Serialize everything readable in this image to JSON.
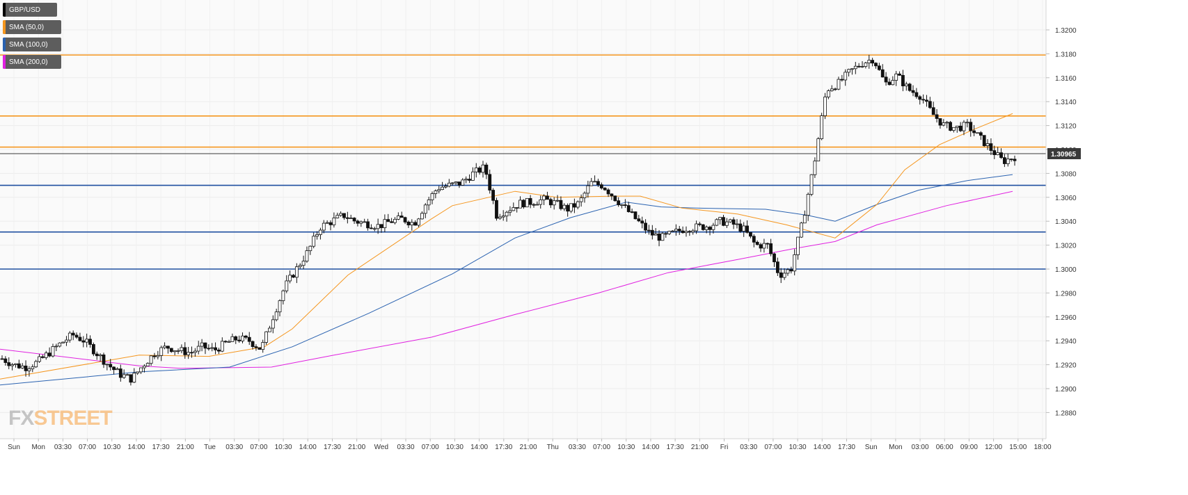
{
  "legend": [
    {
      "label": "GBP/USD",
      "color": "#000000"
    },
    {
      "label": "SMA (50,0)",
      "color": "#f5961e"
    },
    {
      "label": "SMA (100,0)",
      "color": "#2a62b0"
    },
    {
      "label": "SMA (200,0)",
      "color": "#e020e0"
    }
  ],
  "logo": {
    "fx": "FX",
    "street": "STREET"
  },
  "price_badge": "1.30965",
  "chart_data": {
    "type": "candlestick",
    "symbol": "GBP/USD",
    "ylim": [
      1.2865,
      1.3215
    ],
    "y_ticks": [
      "1.2880",
      "1.2900",
      "1.2920",
      "1.2940",
      "1.2960",
      "1.2980",
      "1.3000",
      "1.3020",
      "1.3040",
      "1.3060",
      "1.3080",
      "1.3100",
      "1.3120",
      "1.3140",
      "1.3160",
      "1.3180",
      "1.3200"
    ],
    "x_ticks": [
      "Sun",
      "Mon",
      "03:30",
      "07:00",
      "10:30",
      "14:00",
      "17:30",
      "21:00",
      "Tue",
      "03:30",
      "07:00",
      "10:30",
      "14:00",
      "17:30",
      "21:00",
      "Wed",
      "03:30",
      "07:00",
      "10:30",
      "14:00",
      "17:30",
      "21:00",
      "Thu",
      "03:30",
      "07:00",
      "10:30",
      "14:00",
      "17:30",
      "21:00",
      "Fri",
      "03:30",
      "07:00",
      "10:30",
      "14:00",
      "17:30",
      "Sun",
      "Mon",
      "03:00",
      "06:00",
      "09:00",
      "12:00",
      "15:00",
      "18:00"
    ],
    "horizontal_lines": [
      {
        "value": 1.3179,
        "color": "#f5961e"
      },
      {
        "value": 1.3128,
        "color": "#f5961e"
      },
      {
        "value": 1.3102,
        "color": "#f5961e"
      },
      {
        "value": 1.30965,
        "color": "#3a3a3a"
      },
      {
        "value": 1.307,
        "color": "#1f4fa0"
      },
      {
        "value": 1.3031,
        "color": "#1f4fa0"
      },
      {
        "value": 1.3,
        "color": "#1f4fa0"
      }
    ],
    "price_path": [
      1.2925,
      1.292,
      1.2918,
      1.2922,
      1.293,
      1.2938,
      1.2945,
      1.294,
      1.293,
      1.292,
      1.2912,
      1.2908,
      1.292,
      1.293,
      1.2935,
      1.2932,
      1.293,
      1.2935,
      1.2932,
      1.2938,
      1.2942,
      1.294,
      1.2933,
      1.296,
      1.2985,
      1.3,
      1.3015,
      1.3035,
      1.304,
      1.3045,
      1.304,
      1.3038,
      1.3036,
      1.304,
      1.3042,
      1.3038,
      1.3055,
      1.3068,
      1.307,
      1.3072,
      1.308,
      1.3085,
      1.3045,
      1.305,
      1.3055,
      1.3056,
      1.3058,
      1.3055,
      1.305,
      1.3055,
      1.3072,
      1.307,
      1.306,
      1.305,
      1.304,
      1.303,
      1.3026,
      1.303,
      1.3034,
      1.3035,
      1.3036,
      1.304,
      1.3038,
      1.3033,
      1.302,
      1.302,
      1.2995,
      1.3,
      1.304,
      1.309,
      1.315,
      1.3155,
      1.3165,
      1.3172,
      1.3176,
      1.3155,
      1.3162,
      1.315,
      1.3145,
      1.313,
      1.312,
      1.3118,
      1.312,
      1.311,
      1.31,
      1.309,
      1.3094
    ],
    "sma50": [
      [
        0,
        1.2908
      ],
      [
        200,
        1.2928
      ],
      [
        300,
        1.2927
      ],
      [
        380,
        1.2935
      ],
      [
        420,
        1.295
      ],
      [
        500,
        1.2995
      ],
      [
        620,
        1.3042
      ],
      [
        650,
        1.3053
      ],
      [
        740,
        1.3065
      ],
      [
        800,
        1.306
      ],
      [
        880,
        1.3061
      ],
      [
        920,
        1.3061
      ],
      [
        980,
        1.3051
      ],
      [
        1060,
        1.3046
      ],
      [
        1130,
        1.3037
      ],
      [
        1200,
        1.3026
      ],
      [
        1260,
        1.3054
      ],
      [
        1300,
        1.3083
      ],
      [
        1350,
        1.3104
      ],
      [
        1400,
        1.3117
      ],
      [
        1455,
        1.313
      ]
    ],
    "sma100": [
      [
        0,
        1.2903
      ],
      [
        200,
        1.2914
      ],
      [
        330,
        1.2918
      ],
      [
        420,
        1.2935
      ],
      [
        530,
        1.2963
      ],
      [
        650,
        1.2996
      ],
      [
        740,
        1.3026
      ],
      [
        820,
        1.3043
      ],
      [
        900,
        1.3056
      ],
      [
        950,
        1.3052
      ],
      [
        1000,
        1.3051
      ],
      [
        1100,
        1.305
      ],
      [
        1160,
        1.3045
      ],
      [
        1200,
        1.304
      ],
      [
        1260,
        1.3054
      ],
      [
        1320,
        1.3066
      ],
      [
        1390,
        1.3074
      ],
      [
        1455,
        1.3079
      ]
    ],
    "sma200": [
      [
        0,
        1.2933
      ],
      [
        200,
        1.2919
      ],
      [
        260,
        1.2917
      ],
      [
        390,
        1.2918
      ],
      [
        480,
        1.2928
      ],
      [
        620,
        1.2943
      ],
      [
        740,
        1.2962
      ],
      [
        860,
        1.298
      ],
      [
        960,
        1.2997
      ],
      [
        1060,
        1.3008
      ],
      [
        1140,
        1.3017
      ],
      [
        1200,
        1.3023
      ],
      [
        1260,
        1.3037
      ],
      [
        1360,
        1.3053
      ],
      [
        1455,
        1.3065
      ]
    ]
  }
}
